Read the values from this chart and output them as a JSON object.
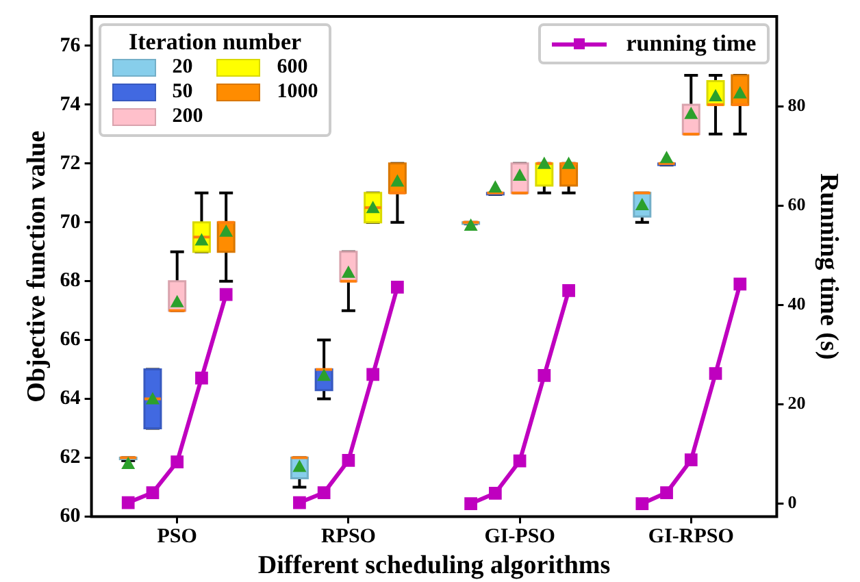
{
  "chart_data": {
    "type": "box",
    "xlabel": "Different scheduling algorithms",
    "ylabel": "Objective function value",
    "y2label": "Running time (s)",
    "legend_title": "Iteration number",
    "categories": [
      null,
      null,
      null,
      "PSO",
      null,
      null,
      null,
      null,
      null,
      null,
      "RPSO",
      null,
      null,
      null,
      null,
      null,
      null,
      "GI-PSO",
      null,
      null,
      null,
      null,
      null,
      null,
      "GI-RPSO",
      null,
      null,
      null
    ],
    "ylim": [
      60,
      77
    ],
    "yticks": [
      60,
      62,
      64,
      66,
      68,
      70,
      72,
      74,
      76
    ],
    "y2lim": [
      -2.6,
      98.1
    ],
    "y2ticks": [
      0,
      20,
      40,
      60,
      80
    ],
    "grid": false,
    "legend": "top left",
    "series": [
      {
        "name": "20",
        "color": "#87ceeb",
        "boxes": [
          null,
          {
            "low": 61.9,
            "q1": 61.95,
            "median": 62,
            "q3": 62,
            "high": 62,
            "mean": 61.8
          },
          null,
          null,
          null,
          null,
          null,
          null,
          {
            "low": 61,
            "q1": 61.3,
            "median": 62,
            "q3": 62,
            "high": 62,
            "mean": 61.7
          },
          null,
          null,
          null,
          null,
          null,
          null,
          {
            "low": 69.95,
            "q1": 69.95,
            "median": 70,
            "q3": 70,
            "high": 70,
            "mean": 69.9
          },
          null,
          null,
          null,
          null,
          null,
          null,
          {
            "low": 70,
            "q1": 70.2,
            "median": 71,
            "q3": 71,
            "high": 71,
            "mean": 70.6
          },
          null,
          null,
          null,
          null,
          null
        ]
      },
      {
        "name": "50",
        "color": "#4169e1",
        "boxes": [
          null,
          null,
          {
            "low": 63,
            "q1": 63,
            "median": 64,
            "q3": 65,
            "high": 65,
            "mean": 64
          },
          null,
          null,
          null,
          null,
          null,
          null,
          {
            "low": 64,
            "q1": 64.3,
            "median": 65,
            "q3": 65,
            "high": 66,
            "mean": 64.8
          },
          null,
          null,
          null,
          null,
          null,
          null,
          {
            "low": 70.95,
            "q1": 70.95,
            "median": 71,
            "q3": 71,
            "high": 71,
            "mean": 71.2
          },
          null,
          null,
          null,
          null,
          null,
          null,
          {
            "low": 71.95,
            "q1": 71.95,
            "median": 72,
            "q3": 72,
            "high": 72,
            "mean": 72.2
          },
          null,
          null,
          null,
          null
        ]
      },
      {
        "name": "200",
        "color": "#ffc0cb",
        "boxes": [
          null,
          null,
          null,
          {
            "low": 67,
            "q1": 67,
            "median": 67,
            "q3": 68,
            "high": 69,
            "mean": 67.3
          },
          null,
          null,
          null,
          null,
          null,
          null,
          {
            "low": 67,
            "q1": 68,
            "median": 68,
            "q3": 69,
            "high": 69,
            "mean": 68.3
          },
          null,
          null,
          null,
          null,
          null,
          null,
          {
            "low": 71,
            "q1": 71,
            "median": 71,
            "q3": 72,
            "high": 72,
            "mean": 71.6
          },
          null,
          null,
          null,
          null,
          null,
          null,
          {
            "low": 73,
            "q1": 73,
            "median": 73,
            "q3": 74,
            "high": 75,
            "mean": 73.7
          },
          null,
          null,
          null
        ]
      },
      {
        "name": "600",
        "color": "#ffff00",
        "boxes": [
          null,
          null,
          null,
          null,
          {
            "low": 69,
            "q1": 69,
            "median": 69.5,
            "q3": 70,
            "high": 71,
            "mean": 69.4
          },
          null,
          null,
          null,
          null,
          null,
          null,
          {
            "low": 70,
            "q1": 70,
            "median": 70.5,
            "q3": 71,
            "high": 71,
            "mean": 70.5
          },
          null,
          null,
          null,
          null,
          null,
          null,
          {
            "low": 71,
            "q1": 71.25,
            "median": 72,
            "q3": 72,
            "high": 72,
            "mean": 72
          },
          null,
          null,
          null,
          null,
          null,
          null,
          {
            "low": 73,
            "q1": 74,
            "median": 74,
            "q3": 74.8,
            "high": 75,
            "mean": 74.3
          },
          null,
          null
        ]
      },
      {
        "name": "1000",
        "color": "#ff8c00",
        "boxes": [
          null,
          null,
          null,
          null,
          null,
          {
            "low": 68,
            "q1": 69,
            "median": 70,
            "q3": 70,
            "high": 71,
            "mean": 69.7
          },
          null,
          null,
          null,
          null,
          null,
          null,
          {
            "low": 70,
            "q1": 71,
            "median": 71,
            "q3": 72,
            "high": 72,
            "mean": 71.4
          },
          null,
          null,
          null,
          null,
          null,
          null,
          {
            "low": 71,
            "q1": 71.25,
            "median": 72,
            "q3": 72,
            "high": 72,
            "mean": 72
          },
          null,
          null,
          null,
          null,
          null,
          null,
          {
            "low": 73,
            "q1": 74,
            "median": 74,
            "q3": 75,
            "high": 75,
            "mean": 74.4
          },
          null
        ]
      },
      {
        "name": "running time",
        "type": "line",
        "axis": "y2",
        "color": "#bf00bf",
        "marker": "square",
        "values": [
          null,
          0.2,
          2.2,
          8.4,
          25.3,
          42.1,
          null,
          null,
          0.2,
          2.2,
          8.7,
          26.0,
          43.6,
          null,
          null,
          0,
          2.1,
          8.6,
          25.8,
          42.9,
          null,
          null,
          0,
          2.2,
          8.8,
          26.2,
          44.2,
          null
        ]
      }
    ]
  }
}
